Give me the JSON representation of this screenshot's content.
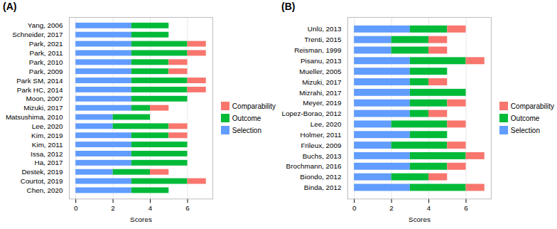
{
  "chart_data": [
    {
      "type": "bar",
      "title": "(A)",
      "orientation": "horizontal",
      "stacked": true,
      "grid": true,
      "legend": "right",
      "xlabel": "Scores",
      "xlim": [
        -0.35,
        7.35
      ],
      "xticks": [
        0,
        2,
        4,
        6
      ],
      "categories": [
        "Yang, 2006",
        "Schneider, 2017",
        "Park, 2021",
        "Park, 2011",
        "Park, 2010",
        "Park, 2009",
        "Park SM, 2014",
        "Park HC, 2014",
        "Moon, 2007",
        "Mizuki, 2017",
        "Matsushima, 2010",
        "Lee, 2020",
        "Kim, 2019",
        "Kim, 2011",
        "Issa, 2012",
        "Ha, 2017",
        "Destek, 2019",
        "Courtot, 2019",
        "Chen, 2020"
      ],
      "series": [
        {
          "name": "Selection",
          "color": "#619CFF",
          "values": [
            3,
            3,
            3,
            3,
            3,
            3,
            3,
            3,
            3,
            3,
            2,
            2,
            3,
            3,
            3,
            3,
            2,
            3,
            3
          ]
        },
        {
          "name": "Outcome",
          "color": "#00BA38",
          "values": [
            2,
            2,
            3,
            3,
            2,
            2,
            3,
            3,
            3,
            1,
            2,
            3,
            2,
            3,
            3,
            3,
            2,
            3,
            2
          ]
        },
        {
          "name": "Comparability",
          "color": "#F8766D",
          "values": [
            0,
            0,
            1,
            1,
            1,
            1,
            1,
            1,
            0,
            1,
            0,
            1,
            1,
            0,
            0,
            0,
            1,
            1,
            0
          ]
        }
      ]
    },
    {
      "type": "bar",
      "title": "(B)",
      "orientation": "horizontal",
      "stacked": true,
      "grid": true,
      "legend": "right",
      "xlabel": "Scores",
      "xlim": [
        -0.35,
        7.35
      ],
      "xticks": [
        0,
        2,
        4,
        6
      ],
      "categories": [
        "Unlü, 2013",
        "Trenti, 2015",
        "Reisman, 1999",
        "Pisanu, 2013",
        "Mueller, 2005",
        "Mizuki, 2017",
        "Mizrahi, 2017",
        "Meyer, 2019",
        "Lopez-Borao, 2012",
        "Lee, 2020",
        "Holmer, 2011",
        "Frileux, 2009",
        "Buchs, 2013",
        "Brochmann, 2016",
        "Biondo, 2012",
        "Binda, 2012"
      ],
      "series": [
        {
          "name": "Selection",
          "color": "#619CFF",
          "values": [
            3,
            2,
            2,
            3,
            3,
            3,
            3,
            3,
            3,
            2,
            3,
            2,
            3,
            3,
            2,
            3
          ]
        },
        {
          "name": "Outcome",
          "color": "#00BA38",
          "values": [
            2,
            2,
            2,
            3,
            2,
            1,
            3,
            2,
            1,
            3,
            2,
            3,
            3,
            2,
            2,
            3
          ]
        },
        {
          "name": "Comparability",
          "color": "#F8766D",
          "values": [
            1,
            1,
            1,
            1,
            0,
            1,
            0,
            1,
            1,
            1,
            0,
            1,
            1,
            1,
            1,
            1
          ]
        }
      ]
    }
  ]
}
